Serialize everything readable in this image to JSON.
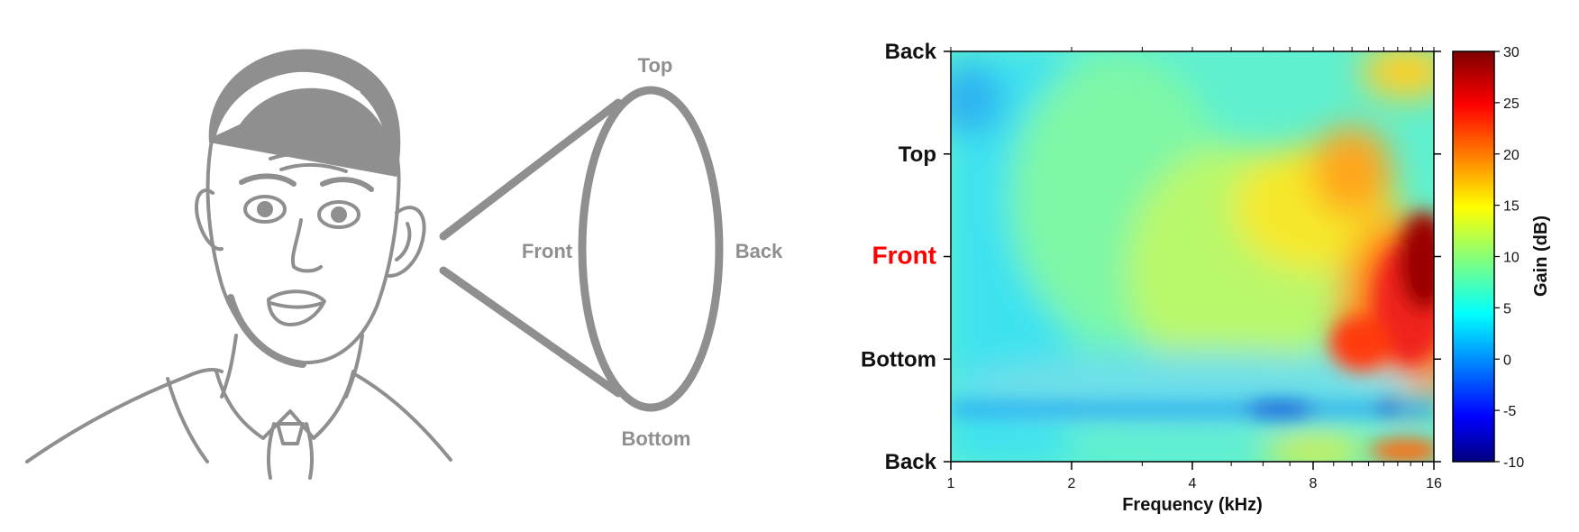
{
  "illustration": {
    "labels": {
      "top": "Top",
      "front": "Front",
      "back": "Back",
      "bottom": "Bottom"
    },
    "stroke_color": "#8f8f8f",
    "icon": "person-with-ear-cone"
  },
  "chart_data": {
    "type": "heatmap",
    "x": [
      1,
      2,
      4,
      8,
      16
    ],
    "x_tick_labels": [
      "1",
      "2",
      "4",
      "8",
      "16"
    ],
    "xlabel": "Frequency (kHz)",
    "x_scale": "log2",
    "xlim": [
      1,
      16
    ],
    "y_tick_labels": [
      "Back",
      "Top",
      "Front",
      "Bottom",
      "Back"
    ],
    "y_highlight": {
      "label": "Front",
      "color": "#ff0000"
    },
    "colorbar": {
      "label": "Gain (dB)",
      "ticks": [
        "30",
        "25",
        "20",
        "15",
        "10",
        "5",
        "0",
        "-5",
        "-10"
      ],
      "range": [
        -10,
        30
      ],
      "colormap": "jet"
    },
    "grid": false
  }
}
